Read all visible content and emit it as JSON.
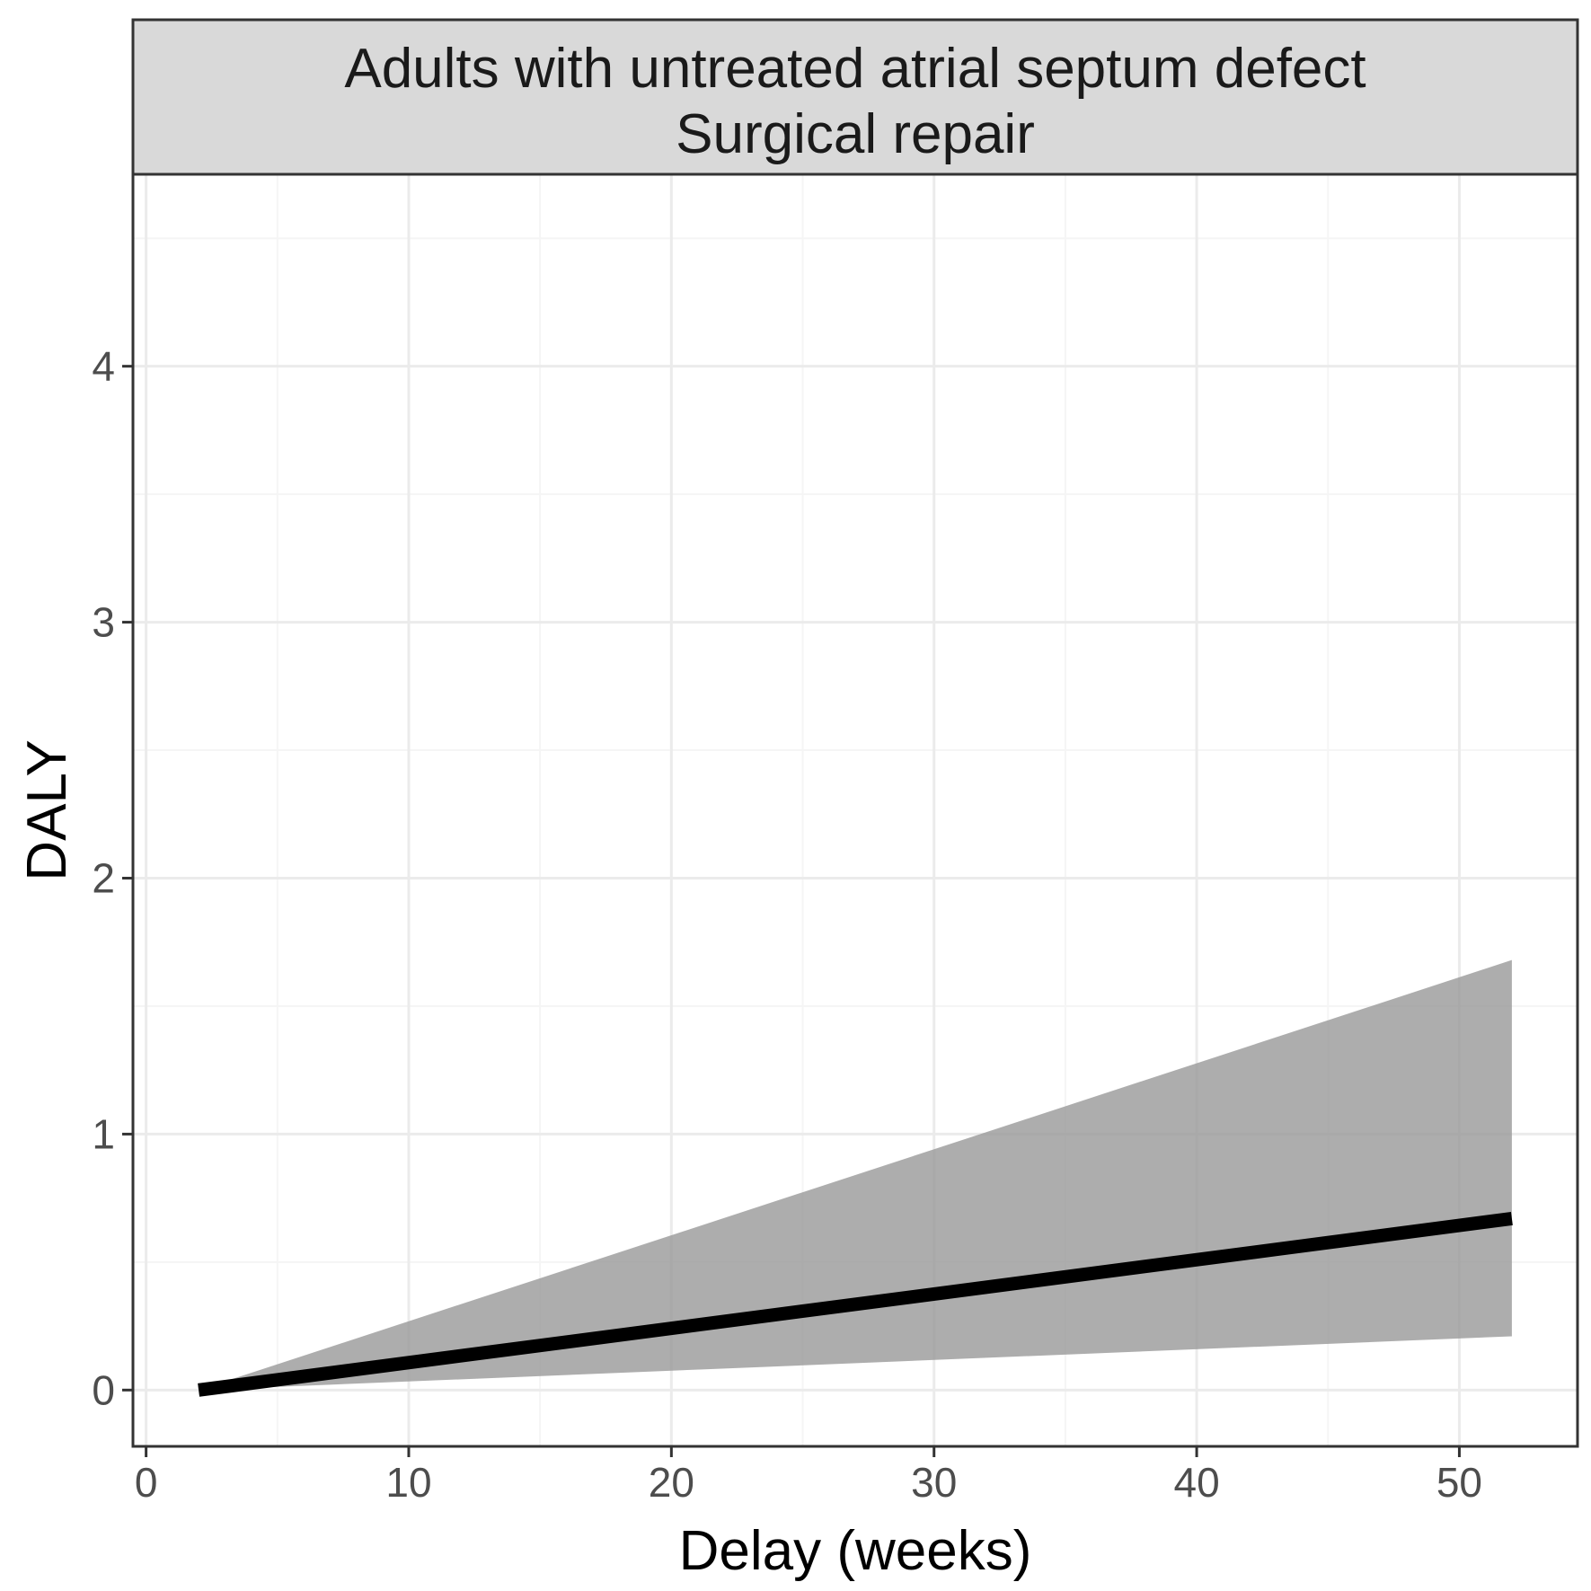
{
  "chart_data": {
    "type": "line",
    "title": "",
    "facet_strip": {
      "line1": "Adults with untreated atrial septum defect",
      "line2": "Surgical repair"
    },
    "xlabel": "Delay (weeks)",
    "ylabel": "DALY",
    "xlim": [
      -0.5,
      54.5
    ],
    "ylim": [
      -0.22,
      4.75
    ],
    "x_ticks": [
      0,
      10,
      20,
      30,
      40,
      50
    ],
    "y_ticks": [
      0,
      1,
      2,
      3,
      4
    ],
    "x_minor": [
      5,
      15,
      25,
      35,
      45
    ],
    "y_minor": [
      0.5,
      1.5,
      2.5,
      3.5,
      4.5
    ],
    "grid": true,
    "legend": "none",
    "series": [
      {
        "x": [
          2,
          52
        ],
        "values": [
          0,
          0.67
        ],
        "ribbon_lower": [
          0,
          0.21
        ],
        "ribbon_upper": [
          0,
          1.68
        ]
      }
    ],
    "colors": {
      "line": "#000000",
      "ribbon": "#999999",
      "strip_fill": "#d9d9d9",
      "border": "#333333",
      "grid_major": "#ebebeb",
      "grid_minor": "#f5f5f5"
    }
  }
}
